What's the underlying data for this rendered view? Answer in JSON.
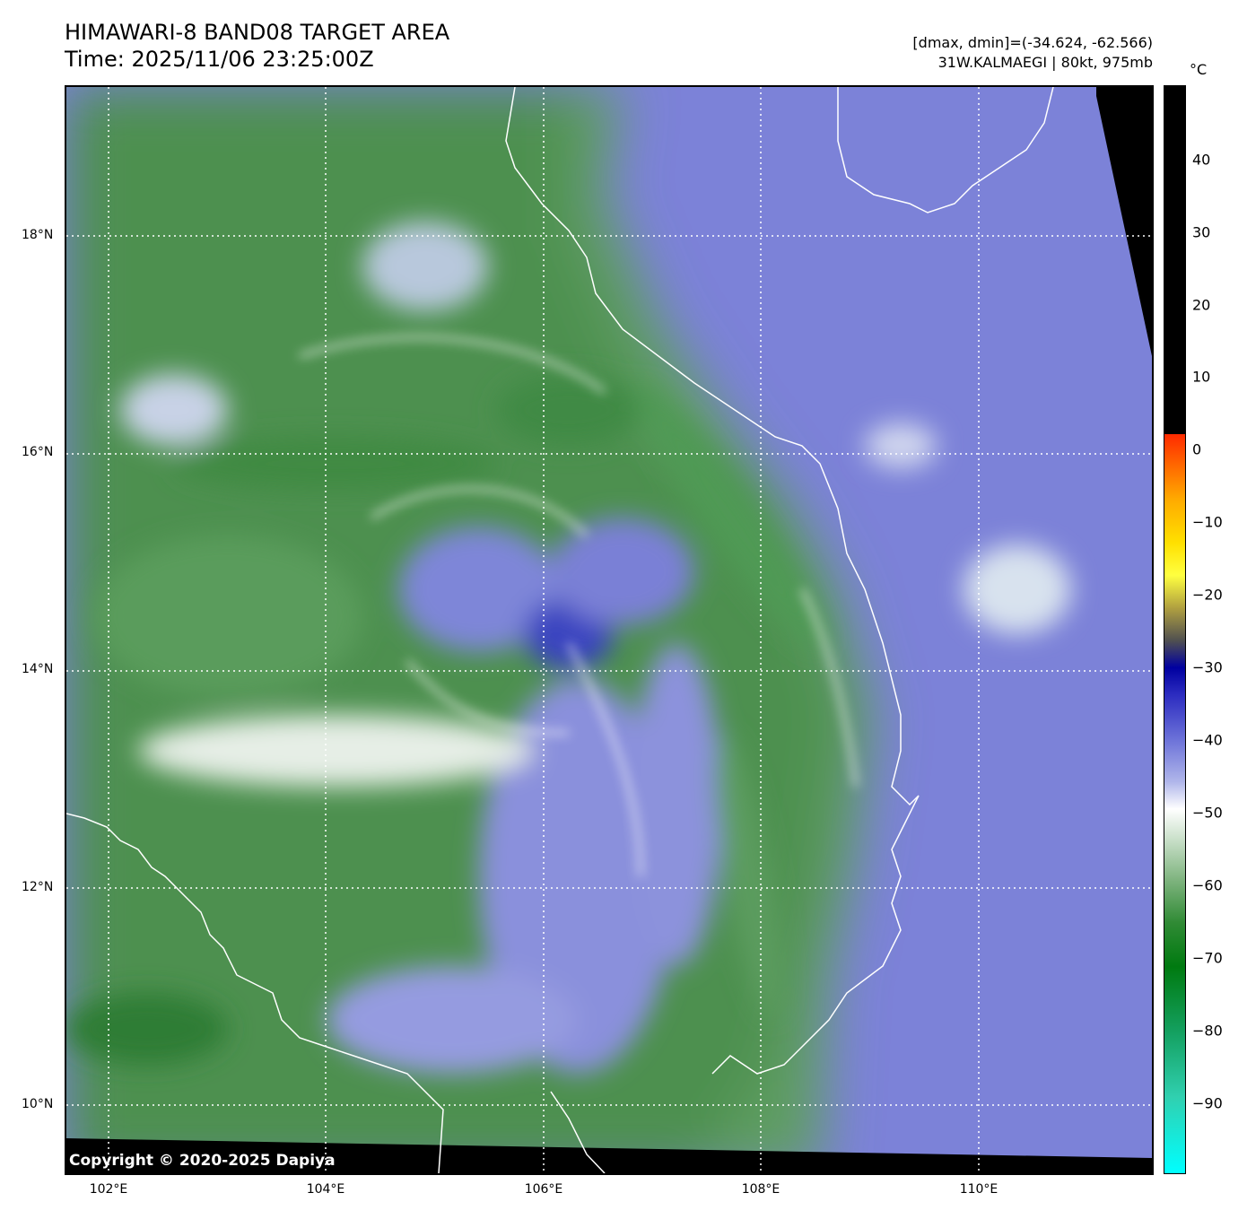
{
  "header": {
    "title_line1": "HIMAWARI-8 BAND08 TARGET AREA",
    "title_line2": "Time: 2025/11/06 23:25:00Z",
    "stats": "[dmax, dmin]=(-34.624, -62.566)",
    "storm": "31W.KALMAEGI | 80kt, 975mb"
  },
  "map": {
    "lat_labels": [
      "18°N",
      "16°N",
      "14°N",
      "12°N",
      "10°N"
    ],
    "lon_labels": [
      "102°E",
      "104°E",
      "106°E",
      "108°E",
      "110°E"
    ],
    "copyright": "Copyright © 2020-2025 Dapiya"
  },
  "colorbar": {
    "unit": "°C",
    "tick_labels": [
      "40",
      "30",
      "20",
      "10",
      "0",
      "−10",
      "−20",
      "−30",
      "−40",
      "−50",
      "−60",
      "−70",
      "−80",
      "−90"
    ]
  },
  "colors": {
    "cold_blue": "#6b72d8",
    "moist_green": "#3d8a45",
    "white": "#ffffff",
    "black": "#000000"
  }
}
